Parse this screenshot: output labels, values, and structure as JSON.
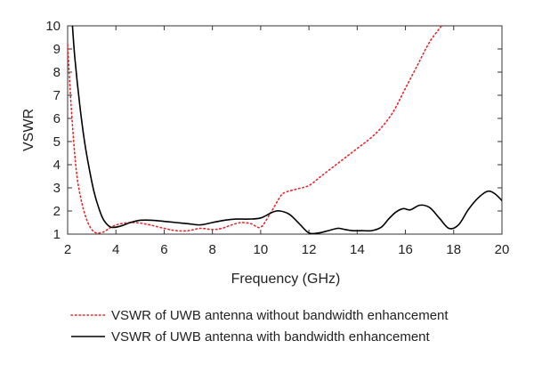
{
  "chart_data": {
    "type": "line",
    "xlabel": "Frequency (GHz)",
    "ylabel": "VSWR",
    "xlim": [
      2,
      20
    ],
    "ylim": [
      1,
      10
    ],
    "xticks": [
      2,
      4,
      6,
      8,
      10,
      12,
      14,
      16,
      18,
      20
    ],
    "yticks": [
      1,
      2,
      3,
      4,
      5,
      6,
      7,
      8,
      9,
      10
    ],
    "grid": false,
    "legend_position": "bottom",
    "series": [
      {
        "name": "VSWR of UWB antenna without bandwidth enhancement",
        "color": "#e8262b",
        "style": "dotted",
        "x": [
          2.0,
          2.1,
          2.25,
          2.4,
          2.6,
          2.8,
          3.0,
          3.2,
          3.5,
          3.8,
          4.2,
          4.8,
          5.4,
          6.0,
          6.5,
          7.0,
          7.5,
          8.0,
          8.4,
          8.8,
          9.2,
          9.6,
          10.0,
          10.4,
          10.8,
          11.0,
          11.5,
          12.0,
          12.5,
          13.0,
          13.5,
          14.0,
          14.5,
          15.0,
          15.5,
          16.0,
          16.5,
          17.0,
          17.5
        ],
        "y": [
          9.2,
          7.3,
          5.0,
          3.4,
          2.3,
          1.6,
          1.2,
          1.05,
          1.1,
          1.3,
          1.45,
          1.5,
          1.4,
          1.25,
          1.15,
          1.15,
          1.25,
          1.2,
          1.25,
          1.4,
          1.5,
          1.45,
          1.3,
          1.9,
          2.6,
          2.8,
          2.95,
          3.1,
          3.5,
          3.9,
          4.3,
          4.7,
          5.1,
          5.6,
          6.3,
          7.3,
          8.3,
          9.3,
          10.0
        ]
      },
      {
        "name": "VSWR of UWB antenna with bandwidth enhancement",
        "color": "#000000",
        "style": "solid",
        "x": [
          2.2,
          2.3,
          2.5,
          2.7,
          2.9,
          3.1,
          3.3,
          3.5,
          3.8,
          4.2,
          4.6,
          5.0,
          5.5,
          6.0,
          6.5,
          7.0,
          7.5,
          8.0,
          8.5,
          9.0,
          9.5,
          10.0,
          10.5,
          10.8,
          11.2,
          11.6,
          12.0,
          12.4,
          12.8,
          13.2,
          13.5,
          13.8,
          14.2,
          14.6,
          15.0,
          15.3,
          15.6,
          15.9,
          16.2,
          16.6,
          17.0,
          17.4,
          17.8,
          18.2,
          18.6,
          19.0,
          19.4,
          19.7,
          20.0
        ],
        "y": [
          10.0,
          8.6,
          6.6,
          5.0,
          3.8,
          2.8,
          2.1,
          1.6,
          1.3,
          1.35,
          1.5,
          1.6,
          1.6,
          1.55,
          1.5,
          1.45,
          1.4,
          1.5,
          1.6,
          1.65,
          1.65,
          1.7,
          1.95,
          2.0,
          1.85,
          1.45,
          1.05,
          1.05,
          1.15,
          1.25,
          1.2,
          1.15,
          1.15,
          1.15,
          1.3,
          1.65,
          1.95,
          2.1,
          2.05,
          2.25,
          2.15,
          1.7,
          1.25,
          1.4,
          2.05,
          2.55,
          2.85,
          2.75,
          2.45
        ]
      }
    ]
  }
}
